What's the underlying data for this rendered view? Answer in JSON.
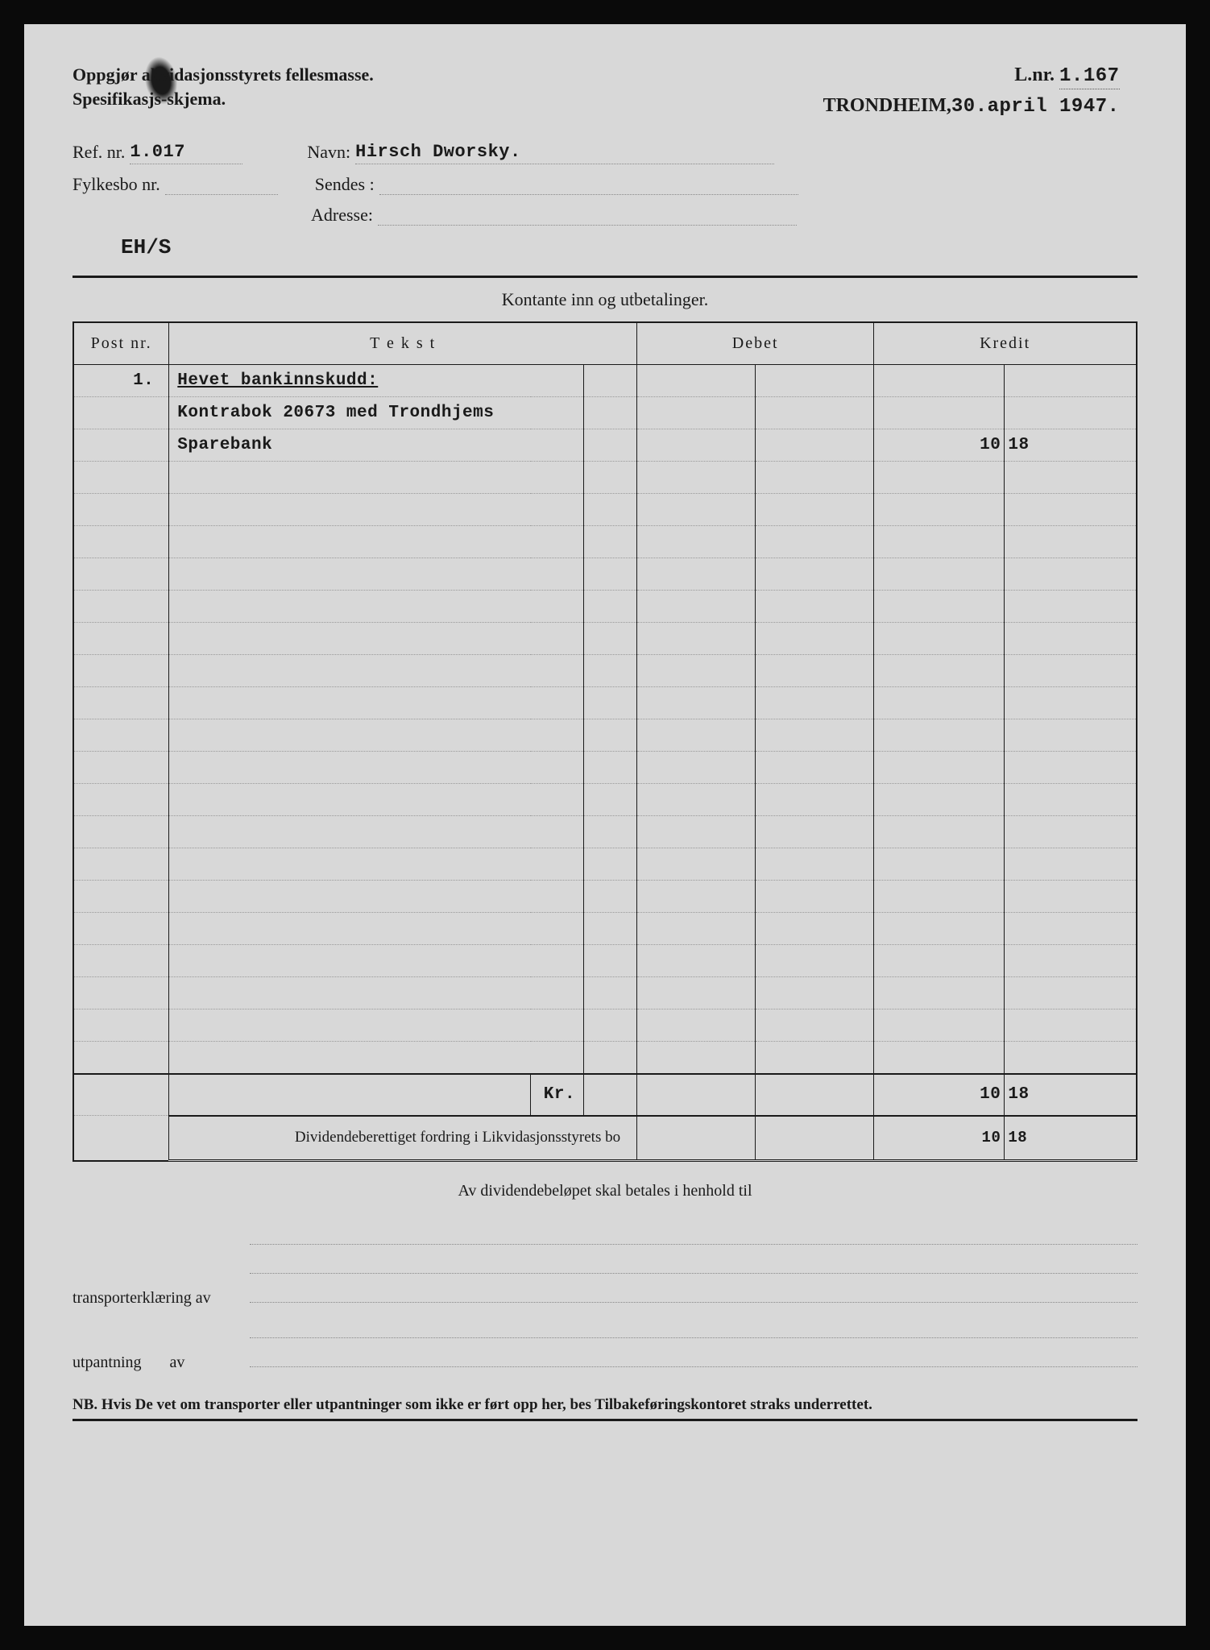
{
  "document": {
    "background_color": "#d8d8d8",
    "frame_color": "#0a0a0a",
    "text_color": "#1a1a1a",
    "dotted_line_color": "#888888"
  },
  "header": {
    "title_line1_a": "Oppgjør a",
    "title_line1_b": "kvidasjonsstyrets fellesmasse.",
    "title_line2_a": "Spesifikasj",
    "title_line2_b": "s-skjema.",
    "lnr_label": "L.nr.",
    "lnr_value": "1.167",
    "place": "TRONDHEIM,",
    "date": "30.april 1947."
  },
  "info": {
    "ref_label": "Ref. nr.",
    "ref_value": "1.017",
    "navn_label": "Navn:",
    "navn_value": "Hirsch Dworsky.",
    "fylkesbo_label": "Fylkesbo nr.",
    "fylkesbo_value": "",
    "sendes_label": "Sendes :",
    "sendes_value": "",
    "adresse_label": "Adresse:",
    "adresse_value": "",
    "stamp": "EH/S"
  },
  "table": {
    "section_title": "Kontante inn og utbetalinger.",
    "headers": {
      "post": "Post nr.",
      "tekst": "T e k s t",
      "debet": "Debet",
      "kredit": "Kredit"
    },
    "rows": [
      {
        "post": "1.",
        "tekst": "Hevet bankinnskudd:",
        "underline": true,
        "debet_main": "",
        "debet_dec": "",
        "kredit_main": "",
        "kredit_dec": ""
      },
      {
        "post": "",
        "tekst": "Kontrabok 20673 med Trondhjems",
        "debet_main": "",
        "debet_dec": "",
        "kredit_main": "",
        "kredit_dec": ""
      },
      {
        "post": "",
        "tekst": "Sparebank",
        "debet_main": "",
        "debet_dec": "",
        "kredit_main": "10",
        "kredit_dec": "18"
      },
      {
        "post": "",
        "tekst": "",
        "debet_main": "",
        "debet_dec": "",
        "kredit_main": "",
        "kredit_dec": ""
      },
      {
        "post": "",
        "tekst": "",
        "debet_main": "",
        "debet_dec": "",
        "kredit_main": "",
        "kredit_dec": ""
      },
      {
        "post": "",
        "tekst": "",
        "debet_main": "",
        "debet_dec": "",
        "kredit_main": "",
        "kredit_dec": ""
      },
      {
        "post": "",
        "tekst": "",
        "debet_main": "",
        "debet_dec": "",
        "kredit_main": "",
        "kredit_dec": ""
      },
      {
        "post": "",
        "tekst": "",
        "debet_main": "",
        "debet_dec": "",
        "kredit_main": "",
        "kredit_dec": ""
      },
      {
        "post": "",
        "tekst": "",
        "debet_main": "",
        "debet_dec": "",
        "kredit_main": "",
        "kredit_dec": ""
      },
      {
        "post": "",
        "tekst": "",
        "debet_main": "",
        "debet_dec": "",
        "kredit_main": "",
        "kredit_dec": ""
      },
      {
        "post": "",
        "tekst": "",
        "debet_main": "",
        "debet_dec": "",
        "kredit_main": "",
        "kredit_dec": ""
      },
      {
        "post": "",
        "tekst": "",
        "debet_main": "",
        "debet_dec": "",
        "kredit_main": "",
        "kredit_dec": ""
      },
      {
        "post": "",
        "tekst": "",
        "debet_main": "",
        "debet_dec": "",
        "kredit_main": "",
        "kredit_dec": ""
      },
      {
        "post": "",
        "tekst": "",
        "debet_main": "",
        "debet_dec": "",
        "kredit_main": "",
        "kredit_dec": ""
      },
      {
        "post": "",
        "tekst": "",
        "debet_main": "",
        "debet_dec": "",
        "kredit_main": "",
        "kredit_dec": ""
      },
      {
        "post": "",
        "tekst": "",
        "debet_main": "",
        "debet_dec": "",
        "kredit_main": "",
        "kredit_dec": ""
      },
      {
        "post": "",
        "tekst": "",
        "debet_main": "",
        "debet_dec": "",
        "kredit_main": "",
        "kredit_dec": ""
      },
      {
        "post": "",
        "tekst": "",
        "debet_main": "",
        "debet_dec": "",
        "kredit_main": "",
        "kredit_dec": ""
      },
      {
        "post": "",
        "tekst": "",
        "debet_main": "",
        "debet_dec": "",
        "kredit_main": "",
        "kredit_dec": ""
      },
      {
        "post": "",
        "tekst": "",
        "debet_main": "",
        "debet_dec": "",
        "kredit_main": "",
        "kredit_dec": ""
      },
      {
        "post": "",
        "tekst": "",
        "debet_main": "",
        "debet_dec": "",
        "kredit_main": "",
        "kredit_dec": ""
      },
      {
        "post": "",
        "tekst": "",
        "debet_main": "",
        "debet_dec": "",
        "kredit_main": "",
        "kredit_dec": ""
      }
    ],
    "subtotal": {
      "label": "Kr.",
      "debet_main": "",
      "debet_dec": "",
      "kredit_main": "10",
      "kredit_dec": "18"
    },
    "dividend": {
      "label": "Dividendeberettiget fordring i Likvidasjonsstyrets bo",
      "kredit_main": "10",
      "kredit_dec": "18"
    }
  },
  "footer": {
    "center_text": "Av dividendebeløpet skal betales i henhold til",
    "transport_label": "transporterklæring av",
    "utpantning_label_a": "utpantning",
    "utpantning_label_b": "av",
    "nb_text": "NB. Hvis De vet om transporter eller utpantninger som ikke er ført opp her, bes Tilbakeføringskontoret straks underrettet."
  }
}
